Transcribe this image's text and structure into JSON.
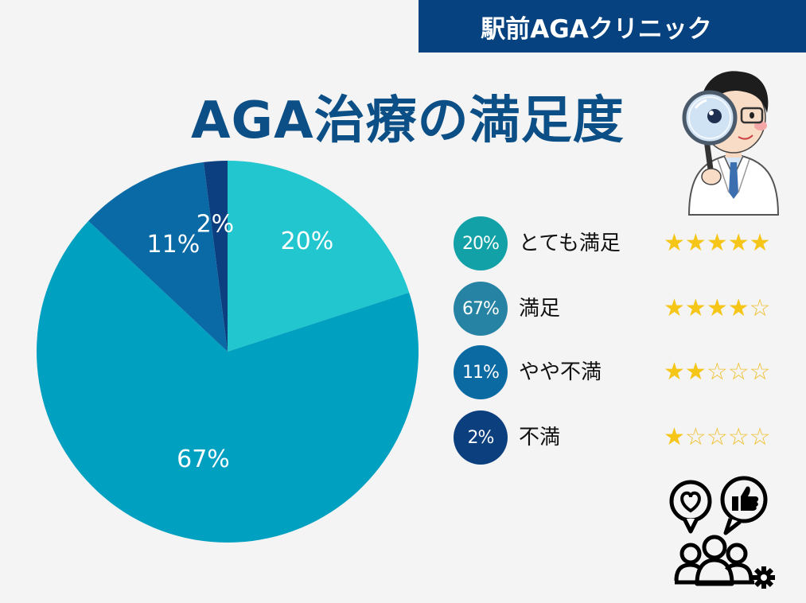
{
  "header": {
    "brand": "駅前AGAクリニック",
    "title": "AGA治療の満足度"
  },
  "chart_data": {
    "type": "pie",
    "title": "AGA治療の満足度",
    "slices": [
      {
        "label": "とても満足",
        "value": 20,
        "value_label": "20%",
        "color": "#21c6cf"
      },
      {
        "label": "満足",
        "value": 67,
        "value_label": "67%",
        "color": "#00a0c0"
      },
      {
        "label": "やや不満",
        "value": 11,
        "value_label": "11%",
        "color": "#0a6aa6"
      },
      {
        "label": "不満",
        "value": 2,
        "value_label": "2%",
        "color": "#0c3f80"
      }
    ]
  },
  "legend": [
    {
      "percent": "20%",
      "label": "とても満足",
      "stars": 5,
      "circle_color": "#12a1a7"
    },
    {
      "percent": "67%",
      "label": "満足",
      "stars": 4,
      "circle_color": "#2783a3"
    },
    {
      "percent": "11%",
      "label": "やや不満",
      "stars": 2,
      "circle_color": "#0c6aa3"
    },
    {
      "percent": "2%",
      "label": "不満",
      "stars": 1,
      "circle_color": "#0c3f7e"
    }
  ],
  "icons": {
    "doctor": "doctor-with-magnifier-icon",
    "feedback": "customer-feedback-icon",
    "star_filled": "★",
    "star_empty": "☆"
  }
}
